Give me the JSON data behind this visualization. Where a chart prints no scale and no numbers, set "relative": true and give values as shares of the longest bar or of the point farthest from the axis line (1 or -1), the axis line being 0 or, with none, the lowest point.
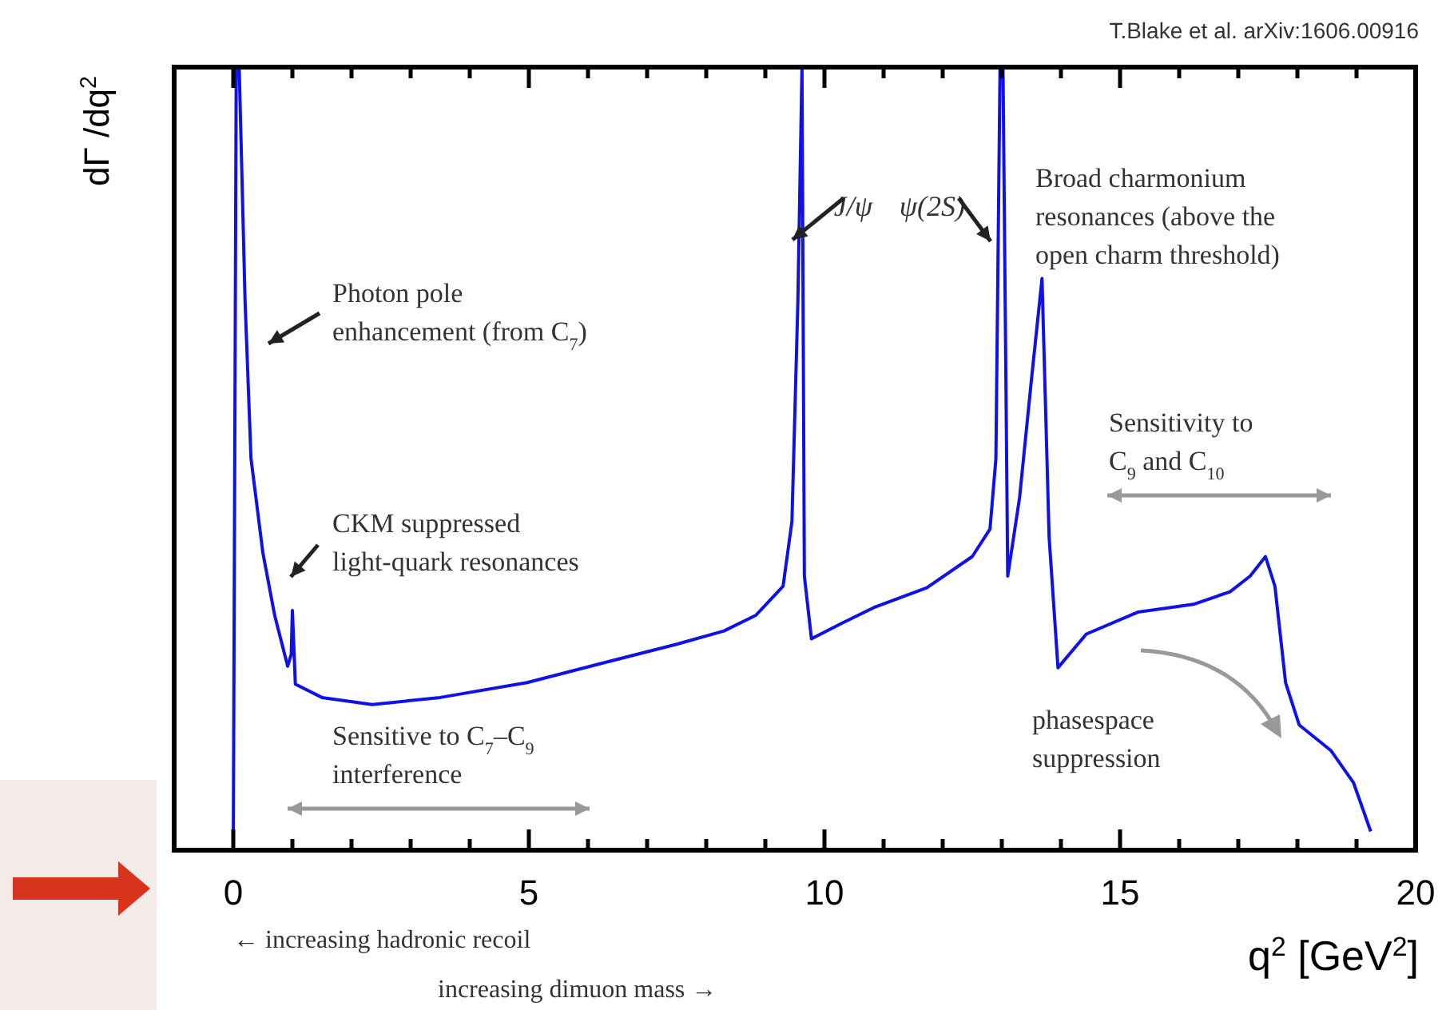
{
  "chart_data": {
    "type": "line",
    "relative": true,
    "xlabel": "q$^{2}$ [GeV$^{2}$]",
    "ylabel": "dΓ /dq$^{2}$",
    "xlim": [
      -1,
      20
    ],
    "xticks": [
      0,
      {
        "value": 1,
        "label": null
      },
      {
        "value": 2,
        "label": null
      },
      {
        "value": 3,
        "label": null
      },
      {
        "value": 4,
        "label": null
      },
      5,
      {
        "value": 6,
        "label": null
      },
      {
        "value": 7,
        "label": null
      },
      {
        "value": 8,
        "label": null
      },
      {
        "value": 9,
        "label": null
      },
      10,
      {
        "value": 11,
        "label": null
      },
      {
        "value": 12,
        "label": null
      },
      {
        "value": 13,
        "label": null
      },
      {
        "value": 14,
        "label": null
      },
      15,
      {
        "value": 16,
        "label": null
      },
      {
        "value": 17,
        "label": null
      },
      {
        "value": 18,
        "label": null
      },
      {
        "value": 19,
        "label": null
      },
      20
    ],
    "series": [
      {
        "color": "#1010e8",
        "x": [
          0,
          0.05,
          0.1,
          0.2,
          0.3,
          0.5,
          0.7,
          0.92,
          0.98,
          1.0,
          1.05,
          1.5,
          2.35,
          3.5,
          4.97,
          6.2,
          7.5,
          8.3,
          8.84,
          9.3,
          9.45,
          9.55,
          9.62,
          9.66,
          9.78,
          10.3,
          10.84,
          11.73,
          12.5,
          12.8,
          12.9,
          12.97,
          13.02,
          13.1,
          13.3,
          13.5,
          13.68,
          13.8,
          13.95,
          14.43,
          15.3,
          16.24,
          16.86,
          17.2,
          17.46,
          17.62,
          17.8,
          18.03,
          18.57,
          18.95,
          19.24
        ],
        "values": [
          0,
          1,
          1,
          0.7,
          0.5,
          0.38,
          0.3,
          0.235,
          0.25,
          0.306,
          0.212,
          0.195,
          0.186,
          0.195,
          0.214,
          0.238,
          0.263,
          0.28,
          0.3,
          0.337,
          0.42,
          0.7,
          1,
          0.35,
          0.27,
          0.29,
          0.31,
          0.335,
          0.375,
          0.41,
          0.5,
          1,
          1,
          0.35,
          0.45,
          0.6,
          0.73,
          0.4,
          0.233,
          0.276,
          0.304,
          0.314,
          0.33,
          0.35,
          0.375,
          0.337,
          0.214,
          0.16,
          0.127,
          0.086,
          0.024
        ]
      }
    ],
    "annotations": [
      "T.Blake et al. arXiv:1606.00916",
      "J/ψ",
      "ψ(2S)",
      "Broad charmonium\nresonances (above the\nopen charm threshold)",
      "Photon pole\nenhancement (from C$_{7}$)",
      "Sensitivity to\nC$_{9}$ and C$_{10}$",
      "CKM suppressed\nlight-quark resonances",
      "Sensitive to C$_{7}$–C$_{9}$\ninterference",
      "phasespace\nsuppression",
      "← increasing hadronic recoil",
      "increasing dimuon mass →"
    ]
  }
}
